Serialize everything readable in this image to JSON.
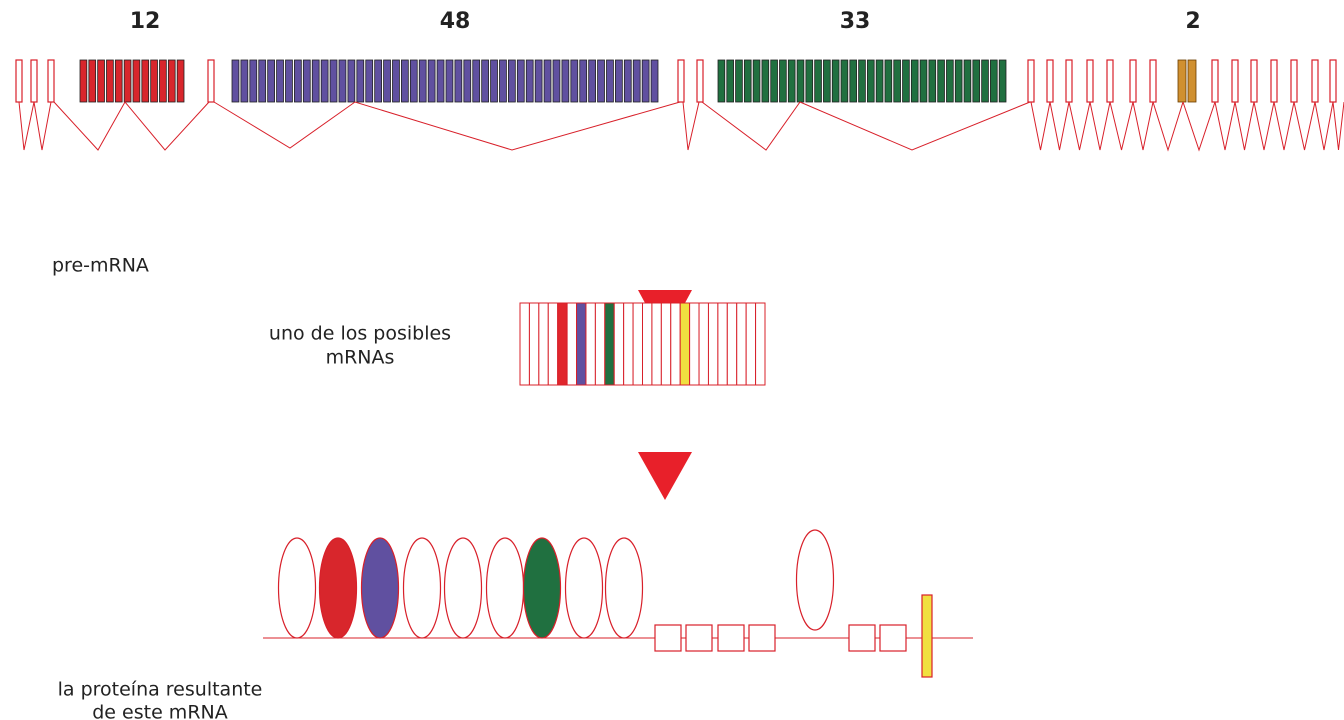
{
  "exon_groups": [
    {
      "count": 12
    },
    {
      "count": 48
    },
    {
      "count": 33
    },
    {
      "count": 2
    }
  ],
  "pre_mrna_label": "pre-mRNA",
  "mrna_label": [
    "uno de los posibles",
    "mRNAs"
  ],
  "protein_label": [
    "la proteína resultante",
    "de este mRNA"
  ]
}
